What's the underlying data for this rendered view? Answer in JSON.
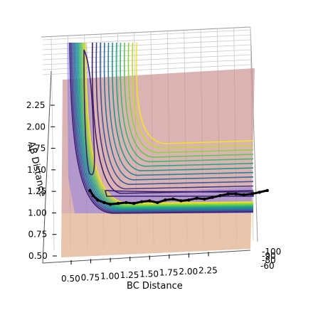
{
  "chart_data": {
    "type": "surface-contour-3d",
    "xlabel": "BC Distance",
    "ylabel": "AB Distance",
    "x_ticks": [
      "0.50",
      "0.75",
      "1.00",
      "1.25",
      "1.50",
      "1.75",
      "2.00",
      "2.25"
    ],
    "y_ticks": [
      "0.50",
      "0.75",
      "1.00",
      "1.25",
      "1.50",
      "1.75",
      "2.00",
      "2.25"
    ],
    "z_ticks": [
      "-100",
      "-90",
      "-80",
      "-60"
    ],
    "xlim": [
      0.4,
      2.5
    ],
    "ylim": [
      0.45,
      2.45
    ],
    "trajectory": {
      "x": [
        0.74,
        0.78,
        0.84,
        0.92,
        1.0,
        1.1,
        1.2,
        1.3,
        1.4,
        1.5,
        1.6,
        1.7,
        1.8,
        1.9,
        2.0,
        2.1,
        2.2,
        2.3,
        2.4,
        2.5,
        2.6,
        2.7,
        2.8,
        2.9,
        3.0
      ],
      "y": [
        1.26,
        1.2,
        1.15,
        1.12,
        1.1,
        1.11,
        1.12,
        1.11,
        1.13,
        1.14,
        1.12,
        1.15,
        1.16,
        1.14,
        1.15,
        1.17,
        1.16,
        1.18,
        1.2,
        1.22,
        1.22,
        1.21,
        1.22,
        1.24,
        1.26
      ]
    },
    "contour_levels": 12,
    "grid": true
  }
}
